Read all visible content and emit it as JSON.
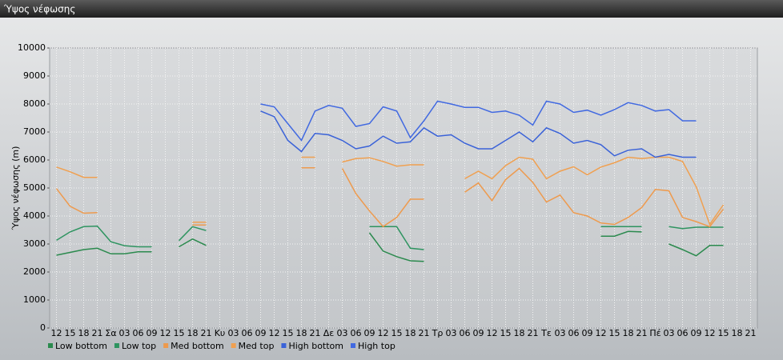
{
  "chart_data": {
    "type": "line",
    "title": "Ύψος νέφωσης",
    "y_label": "Ύψος νέφωσης (m)",
    "categories": [
      "12",
      "15",
      "18",
      "21",
      "Σα",
      "03",
      "06",
      "09",
      "12",
      "15",
      "18",
      "21",
      "Κυ",
      "03",
      "06",
      "09",
      "12",
      "15",
      "18",
      "21",
      "Δε",
      "03",
      "06",
      "09",
      "12",
      "15",
      "18",
      "21",
      "Τρ",
      "03",
      "06",
      "09",
      "12",
      "15",
      "18",
      "21",
      "Τε",
      "03",
      "06",
      "09",
      "12",
      "15",
      "18",
      "21",
      "Πέ",
      "03",
      "06",
      "09",
      "12",
      "15",
      "18",
      "21"
    ],
    "ylim": [
      0,
      10000
    ],
    "yticks": [
      0,
      1000,
      2000,
      3000,
      4000,
      5000,
      6000,
      7000,
      8000,
      9000,
      10000
    ],
    "grid": true,
    "series": [
      {
        "name": "Low bottom",
        "color": "#2b8a4e",
        "values": [
          2600,
          2700,
          2800,
          2850,
          2650,
          2650,
          2720,
          2720,
          null,
          2900,
          3180,
          2950,
          null,
          null,
          null,
          null,
          null,
          null,
          null,
          null,
          null,
          null,
          null,
          3400,
          2750,
          2550,
          2400,
          2380,
          null,
          null,
          null,
          null,
          null,
          null,
          null,
          null,
          null,
          null,
          null,
          null,
          3280,
          3280,
          3450,
          3430,
          null,
          3000,
          2800,
          2580,
          2950,
          2950,
          null,
          null
        ]
      },
      {
        "name": "Low top",
        "color": "#2e9460",
        "values": [
          3130,
          3430,
          3620,
          3640,
          3080,
          2940,
          2900,
          2900,
          null,
          3120,
          3620,
          3480,
          null,
          null,
          null,
          null,
          null,
          null,
          null,
          null,
          null,
          null,
          null,
          3620,
          3620,
          3620,
          2850,
          2800,
          null,
          null,
          null,
          null,
          null,
          null,
          null,
          null,
          null,
          null,
          null,
          null,
          3620,
          3620,
          3620,
          3620,
          null,
          3620,
          3550,
          3600,
          3600,
          3600,
          null,
          null
        ]
      },
      {
        "name": "Med bottom",
        "color": "#ee9a4d",
        "values": [
          4980,
          4350,
          4100,
          4120,
          null,
          null,
          null,
          null,
          null,
          null,
          3680,
          3680,
          null,
          null,
          null,
          null,
          null,
          null,
          5720,
          5720,
          null,
          5700,
          4800,
          4180,
          3620,
          3950,
          4600,
          4600,
          null,
          null,
          4850,
          5180,
          4550,
          5300,
          5700,
          5200,
          4500,
          4750,
          4120,
          4000,
          3750,
          3700,
          3950,
          4300,
          4950,
          4900,
          3950,
          3800,
          3620,
          4250,
          null,
          null
        ]
      },
      {
        "name": "Med top",
        "color": "#f0a050",
        "values": [
          5750,
          5580,
          5380,
          5380,
          null,
          null,
          null,
          null,
          null,
          null,
          3780,
          3780,
          null,
          null,
          null,
          null,
          null,
          null,
          6100,
          6100,
          null,
          5930,
          6050,
          6080,
          5950,
          5780,
          5830,
          5830,
          null,
          null,
          5330,
          5600,
          5330,
          5800,
          6100,
          6030,
          5330,
          5600,
          5760,
          5470,
          5750,
          5900,
          6100,
          6050,
          6100,
          6100,
          5950,
          5050,
          3700,
          4400,
          null,
          null
        ]
      },
      {
        "name": "High bottom",
        "color": "#3a62d8",
        "values": [
          null,
          null,
          null,
          null,
          null,
          null,
          null,
          null,
          null,
          null,
          null,
          null,
          null,
          null,
          null,
          7750,
          7550,
          6700,
          6300,
          6950,
          6900,
          6700,
          6400,
          6500,
          6850,
          6600,
          6650,
          7150,
          6850,
          6900,
          6600,
          6400,
          6400,
          6700,
          7000,
          6650,
          7150,
          6950,
          6600,
          6700,
          6550,
          6150,
          6350,
          6400,
          6100,
          6200,
          6100,
          6100,
          null,
          null,
          null,
          null
        ]
      },
      {
        "name": "High top",
        "color": "#4169e1",
        "values": [
          null,
          null,
          null,
          null,
          null,
          null,
          null,
          null,
          null,
          null,
          null,
          null,
          null,
          null,
          null,
          8000,
          7900,
          7300,
          6700,
          7750,
          7950,
          7850,
          7200,
          7300,
          7900,
          7750,
          6800,
          7400,
          8100,
          8000,
          7880,
          7880,
          7700,
          7750,
          7600,
          7250,
          8100,
          8000,
          7700,
          7780,
          7600,
          7800,
          8050,
          7950,
          7750,
          7800,
          7400,
          7400,
          null,
          null,
          null,
          null
        ]
      }
    ]
  }
}
